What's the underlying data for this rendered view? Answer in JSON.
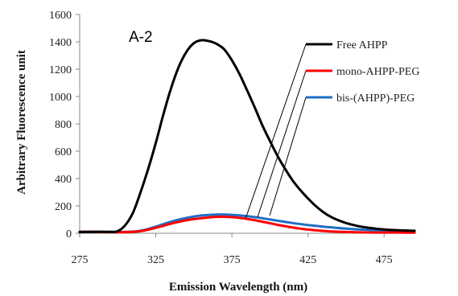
{
  "chart_data": {
    "type": "line",
    "panel_label": "A-2",
    "xlabel": "Emission Wavelength (nm)",
    "ylabel": "Arbitrary Fluorescence unit",
    "xlim": [
      275,
      495
    ],
    "ylim": [
      0,
      1600
    ],
    "xticks": [
      275,
      325,
      375,
      425,
      475
    ],
    "yticks": [
      0,
      200,
      400,
      600,
      800,
      1000,
      1200,
      1400,
      1600
    ],
    "grid": false,
    "legend_position": "top-right",
    "series": [
      {
        "name": "Free AHPP",
        "color": "#000000",
        "x": [
          275,
          285,
          295,
          300,
          305,
          310,
          315,
          320,
          325,
          330,
          335,
          340,
          345,
          350,
          355,
          360,
          363,
          366,
          370,
          375,
          380,
          385,
          390,
          395,
          400,
          405,
          410,
          415,
          420,
          425,
          430,
          435,
          440,
          445,
          450,
          455,
          460,
          465,
          470,
          475,
          480,
          485,
          490,
          495
        ],
        "y": [
          8,
          10,
          10,
          15,
          60,
          150,
          300,
          470,
          660,
          870,
          1060,
          1215,
          1325,
          1390,
          1412,
          1405,
          1395,
          1378,
          1345,
          1265,
          1165,
          1045,
          920,
          790,
          675,
          565,
          470,
          385,
          315,
          255,
          200,
          155,
          120,
          95,
          75,
          60,
          48,
          40,
          33,
          28,
          24,
          22,
          20,
          18
        ]
      },
      {
        "name": "mono-AHPP-PEG",
        "color": "#ff0000",
        "x": [
          275,
          285,
          295,
          305,
          315,
          325,
          335,
          345,
          355,
          365,
          375,
          385,
          395,
          405,
          415,
          425,
          435,
          445,
          455,
          465,
          475,
          485,
          495
        ],
        "y": [
          10,
          10,
          8,
          8,
          15,
          40,
          70,
          95,
          110,
          120,
          118,
          105,
          85,
          62,
          42,
          27,
          17,
          11,
          8,
          6,
          5,
          5,
          4
        ]
      },
      {
        "name": "bis-(AHPP)-PEG",
        "color": "#1f6fc5",
        "x": [
          275,
          285,
          295,
          305,
          315,
          325,
          335,
          345,
          355,
          365,
          375,
          385,
          395,
          405,
          415,
          425,
          435,
          445,
          455,
          465,
          475,
          485,
          495
        ],
        "y": [
          12,
          12,
          10,
          10,
          18,
          48,
          85,
          112,
          130,
          137,
          135,
          125,
          110,
          92,
          75,
          60,
          48,
          38,
          30,
          24,
          20,
          16,
          14
        ]
      }
    ]
  }
}
